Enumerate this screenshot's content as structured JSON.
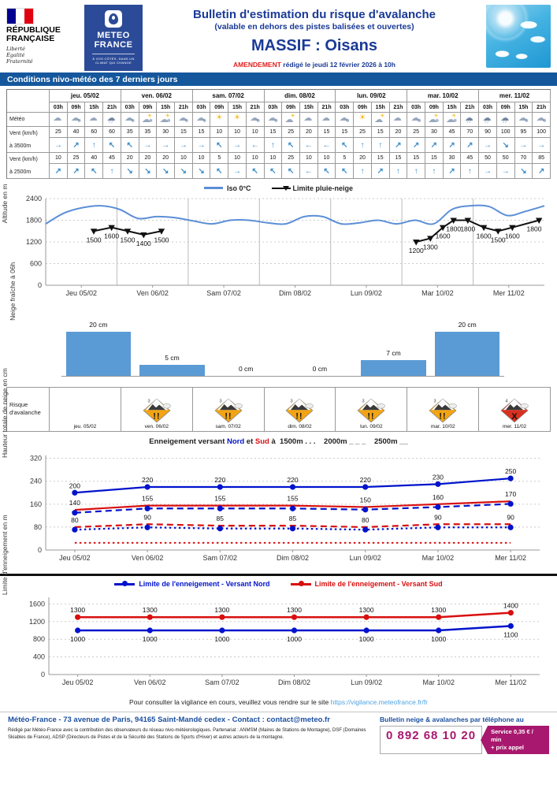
{
  "header": {
    "republique": {
      "line1": "RÉPUBLIQUE",
      "line2": "FRANÇAISE",
      "motto1": "Liberté",
      "motto2": "Égalité",
      "motto3": "Fraternité"
    },
    "meteofrance": {
      "name1": "METEO",
      "name2": "FRANCE",
      "tag1": "À VOS CÔTÉS, DANS UN",
      "tag2": "CLIMAT QUI CHANGE"
    },
    "title": "Bulletin d'estimation du risque d'avalanche",
    "subtitle": "(valable en dehors des pistes balisées et ouvertes)",
    "massif": "MASSIF : Oisans",
    "amendement": "AMENDEMENT",
    "edited_text": " rédigé le jeudi 12 février 2026 à 10h"
  },
  "section_title": "Conditions nivo-météo des 7 derniers jours",
  "table": {
    "labels": {
      "meteo": "Météo",
      "vent": "Vent (km/h)",
      "alt3500": "à 3500m",
      "vent2": "Vent (km/h)",
      "alt2500": "à 2500m"
    },
    "hours": [
      "03h",
      "09h",
      "15h",
      "21h"
    ],
    "days": [
      {
        "label": "jeu. 05/02",
        "weather": [
          "cloud",
          "snow",
          "cloud",
          "rain"
        ],
        "wind3500": [
          25,
          40,
          60,
          60
        ],
        "dir3500": [
          "→",
          "↗",
          "↑",
          "↖"
        ],
        "wind2500": [
          10,
          25,
          40,
          45
        ],
        "dir2500": [
          "↗",
          "↗",
          "↖",
          "↑"
        ]
      },
      {
        "label": "ven. 06/02",
        "weather": [
          "snow",
          "sun-shower",
          "sun-shower",
          "snow"
        ],
        "wind3500": [
          35,
          35,
          30,
          15
        ],
        "dir3500": [
          "↖",
          "→",
          "→",
          "→"
        ],
        "wind2500": [
          20,
          20,
          20,
          10
        ],
        "dir2500": [
          "↘",
          "↘",
          "↘",
          "↘"
        ]
      },
      {
        "label": "sam. 07/02",
        "weather": [
          "snow",
          "sun",
          "sun",
          "snow"
        ],
        "wind3500": [
          15,
          10,
          10,
          10
        ],
        "dir3500": [
          "→",
          "↖",
          "→",
          "←"
        ],
        "wind2500": [
          10,
          5,
          10,
          10
        ],
        "dir2500": [
          "↘",
          "↖",
          "→",
          "↖"
        ]
      },
      {
        "label": "dim. 08/02",
        "weather": [
          "snow",
          "sun-cloud",
          "cloud",
          "cloud"
        ],
        "wind3500": [
          15,
          25,
          20,
          15
        ],
        "dir3500": [
          "↑",
          "↖",
          "←",
          "←"
        ],
        "wind2500": [
          10,
          25,
          10,
          10
        ],
        "dir2500": [
          "↖",
          "↖",
          "←",
          "↖"
        ]
      },
      {
        "label": "lun. 09/02",
        "weather": [
          "snow",
          "sun",
          "sun-cloud",
          "cloud"
        ],
        "wind3500": [
          15,
          25,
          15,
          20
        ],
        "dir3500": [
          "↖",
          "↑",
          "↑",
          "↗"
        ],
        "wind2500": [
          5,
          20,
          15,
          15
        ],
        "dir2500": [
          "↖",
          "↑",
          "↗",
          "↑"
        ]
      },
      {
        "label": "mar. 10/02",
        "weather": [
          "snow",
          "sun-shower",
          "sun-shower",
          "rain"
        ],
        "wind3500": [
          25,
          30,
          45,
          70
        ],
        "dir3500": [
          "↗",
          "↗",
          "↗",
          "↗"
        ],
        "wind2500": [
          15,
          15,
          30,
          45
        ],
        "dir2500": [
          "↑",
          "↑",
          "↗",
          "↑"
        ]
      },
      {
        "label": "mer. 11/02",
        "weather": [
          "rain",
          "rain",
          "snow",
          "snow"
        ],
        "wind3500": [
          90,
          100,
          95,
          100
        ],
        "dir3500": [
          "→",
          "↘",
          "→",
          "→"
        ],
        "wind2500": [
          50,
          50,
          70,
          85
        ],
        "dir2500": [
          "→",
          "→",
          "↘",
          "↗"
        ]
      }
    ]
  },
  "risk": {
    "label": "Risque d'avalanche",
    "days": [
      {
        "date": "jeu. 05/02",
        "level": null
      },
      {
        "date": "ven. 06/02",
        "level": 3
      },
      {
        "date": "sam. 07/02",
        "level": 3
      },
      {
        "date": "dim. 08/02",
        "level": 3
      },
      {
        "date": "lun. 09/02",
        "level": 3
      },
      {
        "date": "mar. 10/02",
        "level": 3
      },
      {
        "date": "mer. 11/02",
        "level": 4
      }
    ],
    "level_colors": {
      "3": "#f2a413",
      "4": "#d7301f"
    }
  },
  "chart_data": [
    {
      "type": "line",
      "ylabel": "Altitude en m",
      "ylim": [
        0,
        2400
      ],
      "yticks": [
        0,
        600,
        1200,
        1800,
        2400
      ],
      "categories": [
        "Jeu 05/02",
        "Ven 06/02",
        "Sam 07/02",
        "Dim 08/02",
        "Lun 09/02",
        "Mar 10/02",
        "Mer 11/02"
      ],
      "legend": [
        "Iso 0°C",
        "Limite pluie-neige"
      ],
      "series": [
        {
          "name": "Iso 0°C",
          "color": "#5b8fd6",
          "style": "solid",
          "width": 2,
          "smooth": true,
          "y": [
            1700,
            2000,
            2150,
            2200,
            2100,
            1850,
            1900,
            1870,
            1780,
            1700,
            1800,
            1800,
            1730,
            1700,
            1900,
            1900,
            1700,
            1730,
            1800,
            1700,
            1800,
            1700,
            2100,
            2200,
            2180,
            1930,
            2050,
            2200
          ]
        },
        {
          "name": "Limite pluie-neige",
          "color": "#111111",
          "style": "solid",
          "width": 2,
          "marker": "tri-down",
          "segments": [
            {
              "x": [
                2.7,
                3.7,
                4.6,
                5.5,
                6.5
              ],
              "y": [
                1500,
                1600,
                1500,
                1400,
                1500
              ],
              "labels": [
                "1500",
                "1600",
                "1500",
                "1400",
                "1500"
              ]
            },
            {
              "x": [
                20.8,
                21.6,
                22.3,
                22.9,
                23.7,
                24.6,
                25.4,
                26.2,
                27.7
              ],
              "y": [
                1200,
                1300,
                1600,
                1800,
                1800,
                1600,
                1500,
                1600,
                1800
              ],
              "labels": [
                "1200",
                "1300",
                "1600",
                "1800",
                "1800",
                "1600",
                "1500",
                "1600",
                "1800"
              ]
            }
          ]
        }
      ]
    },
    {
      "type": "bar",
      "title": "Neige fraîche à 06h",
      "labels": [
        "20 cm",
        "5 cm",
        "0 cm",
        "0 cm",
        "7 cm",
        "20 cm"
      ],
      "values": [
        20,
        5,
        0,
        0,
        7,
        20
      ],
      "color": "#5b9bd5",
      "ymax": 22
    },
    {
      "type": "line",
      "title_parts": {
        "pre": "Enneigement versant ",
        "nord": "Nord",
        "mid": " et ",
        "sud": "Sud",
        "post": " à  1500m . . .    2000m _ _ _    2500m __"
      },
      "ylabel": "Hauteur totale de neige en cm",
      "ylim": [
        0,
        330
      ],
      "yticks": [
        0,
        80,
        160,
        240,
        320
      ],
      "categories": [
        "Jeu 05/02",
        "Ven 06/02",
        "Sam 07/02",
        "Dim 08/02",
        "Lun 09/02",
        "Mar 10/02",
        "Mer 11/02"
      ],
      "series": [
        {
          "name": "Versant Nord 2500m",
          "color": "#0013cc",
          "style": "solid",
          "width": 2.2,
          "marker": "circle",
          "y": [
            200,
            220,
            220,
            220,
            220,
            230,
            250
          ],
          "labels": [
            "200",
            "220",
            "220",
            "220",
            "220",
            "230",
            "250"
          ],
          "label_side": "above"
        },
        {
          "name": "Versant Sud 2500m",
          "color": "#d80f0f",
          "style": "solid",
          "width": 2.2,
          "y": [
            140,
            155,
            155,
            155,
            150,
            160,
            170
          ],
          "labels": [
            "140",
            "155",
            "155",
            "155",
            "150",
            "160",
            "170"
          ],
          "label_side": "above"
        },
        {
          "name": "Versant Nord 2000m",
          "color": "#0013cc",
          "style": "dashed",
          "width": 2.2,
          "marker": "circle",
          "y": [
            130,
            145,
            145,
            145,
            141,
            150,
            161
          ]
        },
        {
          "name": "Versant Sud 2000m",
          "color": "#d80f0f",
          "style": "dashed",
          "width": 2.2,
          "y": [
            80,
            90,
            85,
            85,
            80,
            90,
            90
          ],
          "labels": [
            "80",
            "90",
            "85",
            "85",
            "80",
            "90",
            "90"
          ],
          "label_side": "above"
        },
        {
          "name": "Versant Nord 1500m",
          "color": "#0013cc",
          "style": "dotted",
          "width": 2.2,
          "marker": "circle",
          "y": [
            71,
            79,
            75,
            75,
            71,
            79,
            79
          ]
        },
        {
          "name": "Versant Sud 1500m",
          "color": "#d80f0f",
          "style": "dotted",
          "width": 2,
          "y": [
            25,
            25,
            25,
            25,
            25,
            25,
            25
          ]
        }
      ]
    },
    {
      "type": "line",
      "ylabel": "Limite d'enneigement en m",
      "ylim": [
        0,
        1750
      ],
      "yticks": [
        0,
        400,
        800,
        1200,
        1600
      ],
      "categories": [
        "Jeu 05/02",
        "Ven 06/02",
        "Sam 07/02",
        "Dim 08/02",
        "Lun 09/02",
        "Mar 10/02",
        "Mer 11/02"
      ],
      "series": [
        {
          "name": "Limite de l'enneigement - Versant Nord",
          "color": "#0013cc",
          "style": "solid",
          "width": 2.5,
          "marker": "circle",
          "y": [
            1000,
            1000,
            1000,
            1000,
            1000,
            1000,
            1100
          ],
          "labels": [
            "1000",
            "1000",
            "1000",
            "1000",
            "1000",
            "1000",
            "1100"
          ],
          "label_side": "below"
        },
        {
          "name": "Limite de l'enneigement - Versant Sud",
          "color": "#d80f0f",
          "style": "solid",
          "width": 2.5,
          "marker": "circle",
          "y": [
            1300,
            1300,
            1300,
            1300,
            1300,
            1300,
            1400
          ],
          "labels": [
            "1300",
            "1300",
            "1300",
            "1300",
            "1300",
            "1300",
            "1400"
          ],
          "label_side": "above"
        }
      ]
    }
  ],
  "footer": {
    "vigilance_text": "Pour consulter la vigilance en cours, veuillez vous rendre sur le site ",
    "vigilance_url": "https://vigilance.meteofrance.fr/fr",
    "address": "Météo-France - 73 avenue de Paris, 94165 Saint-Mandé cedex - Contact : contact@meteo.fr",
    "credits": "Rédigé par Météo-France avec la contribution des observateurs du réseau nivo-météorologiques. Partenariat : ANMSM (Maires de Stations de Montagne), DSF (Domaines Skiables de France), ADSP (Directeurs de Pistes et de la Sécurité des Stations de Sports d'Hiver) et autres acteurs de la montagne.",
    "phone_label": "Bulletin neige & avalanches par téléphone au",
    "phone": "0 892 68 10 20",
    "phone_service1": "Service 0,35 € / min",
    "phone_service2": "+ prix appel"
  }
}
